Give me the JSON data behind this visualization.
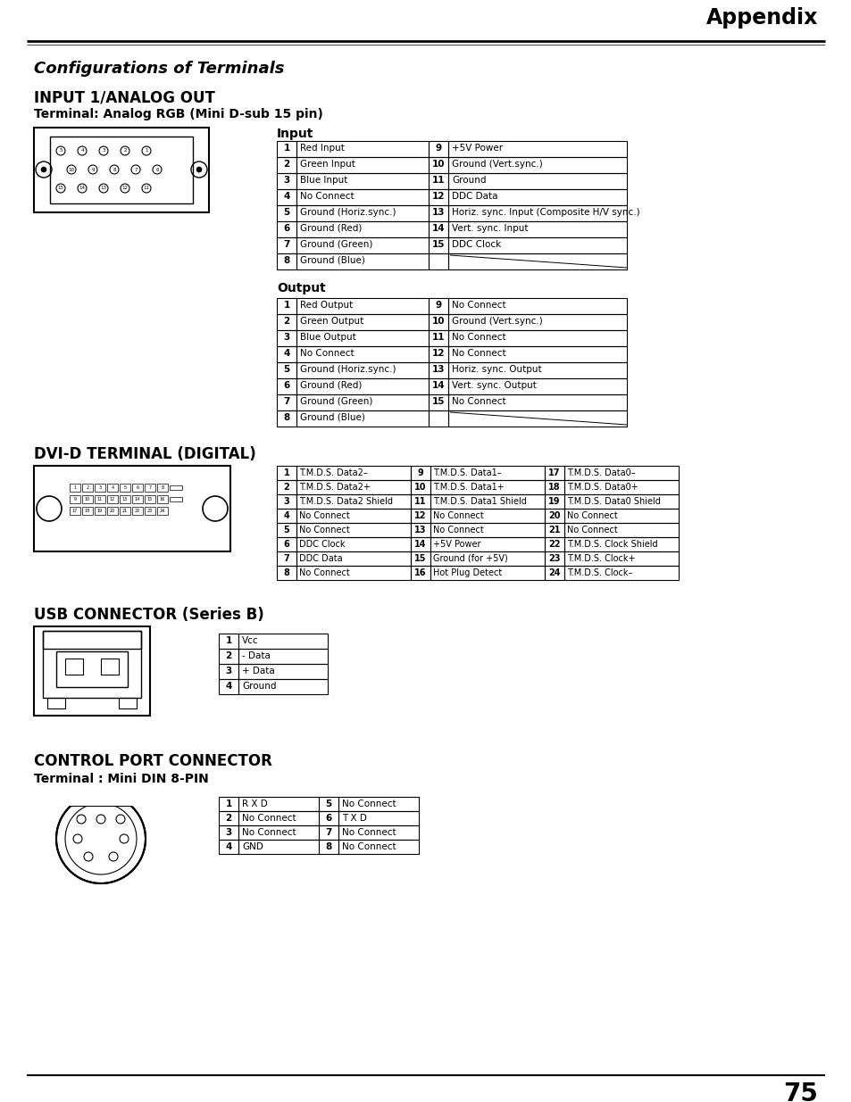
{
  "page_num": "75",
  "header_text": "Appendix",
  "title_configs": "Configurations of Terminals",
  "section1_title": "INPUT 1/ANALOG OUT",
  "section1_subtitle": "Terminal: Analog RGB (Mini D-sub 15 pin)",
  "input_label": "Input",
  "input_table": [
    [
      "1",
      "Red Input",
      "9",
      "+5V Power"
    ],
    [
      "2",
      "Green Input",
      "10",
      "Ground (Vert.sync.)"
    ],
    [
      "3",
      "Blue Input",
      "11",
      "Ground"
    ],
    [
      "4",
      "No Connect",
      "12",
      "DDC Data"
    ],
    [
      "5",
      "Ground (Horiz.sync.)",
      "13",
      "Horiz. sync. Input (Composite H/V sync.)"
    ],
    [
      "6",
      "Ground (Red)",
      "14",
      "Vert. sync. Input"
    ],
    [
      "7",
      "Ground (Green)",
      "15",
      "DDC Clock"
    ],
    [
      "8",
      "Ground (Blue)",
      "",
      ""
    ]
  ],
  "output_label": "Output",
  "output_table": [
    [
      "1",
      "Red Output",
      "9",
      "No Connect"
    ],
    [
      "2",
      "Green Output",
      "10",
      "Ground (Vert.sync.)"
    ],
    [
      "3",
      "Blue Output",
      "11",
      "No Connect"
    ],
    [
      "4",
      "No Connect",
      "12",
      "No Connect"
    ],
    [
      "5",
      "Ground (Horiz.sync.)",
      "13",
      "Horiz. sync. Output"
    ],
    [
      "6",
      "Ground (Red)",
      "14",
      "Vert. sync. Output"
    ],
    [
      "7",
      "Ground (Green)",
      "15",
      "No Connect"
    ],
    [
      "8",
      "Ground (Blue)",
      "",
      ""
    ]
  ],
  "section2_title": "DVI-D TERMINAL (DIGITAL)",
  "dvi_table": [
    [
      "1",
      "T.M.D.S. Data2–",
      "9",
      "T.M.D.S. Data1–",
      "17",
      "T.M.D.S. Data0–"
    ],
    [
      "2",
      "T.M.D.S. Data2+",
      "10",
      "T.M.D.S. Data1+",
      "18",
      "T.M.D.S. Data0+"
    ],
    [
      "3",
      "T.M.D.S. Data2 Shield",
      "11",
      "T.M.D.S. Data1 Shield",
      "19",
      "T.M.D.S. Data0 Shield"
    ],
    [
      "4",
      "No Connect",
      "12",
      "No Connect",
      "20",
      "No Connect"
    ],
    [
      "5",
      "No Connect",
      "13",
      "No Connect",
      "21",
      "No Connect"
    ],
    [
      "6",
      "DDC Clock",
      "14",
      "+5V Power",
      "22",
      "T.M.D.S. Clock Shield"
    ],
    [
      "7",
      "DDC Data",
      "15",
      "Ground (for +5V)",
      "23",
      "T.M.D.S. Clock+"
    ],
    [
      "8",
      "No Connect",
      "16",
      "Hot Plug Detect",
      "24",
      "T.M.D.S. Clock–"
    ]
  ],
  "section3_title": "USB CONNECTOR (Series B)",
  "usb_table": [
    [
      "1",
      "Vcc"
    ],
    [
      "2",
      "- Data"
    ],
    [
      "3",
      "+ Data"
    ],
    [
      "4",
      "Ground"
    ]
  ],
  "section4_title": "CONTROL PORT CONNECTOR",
  "section4_subtitle": "Terminal : Mini DIN 8-PIN",
  "control_table_left": [
    [
      "1",
      "R X D"
    ],
    [
      "2",
      "No Connect"
    ],
    [
      "3",
      "No Connect"
    ],
    [
      "4",
      "GND"
    ]
  ],
  "control_table_right": [
    [
      "5",
      "No Connect"
    ],
    [
      "6",
      "T X D"
    ],
    [
      "7",
      "No Connect"
    ],
    [
      "8",
      "No Connect"
    ]
  ],
  "bg_color": "#ffffff"
}
